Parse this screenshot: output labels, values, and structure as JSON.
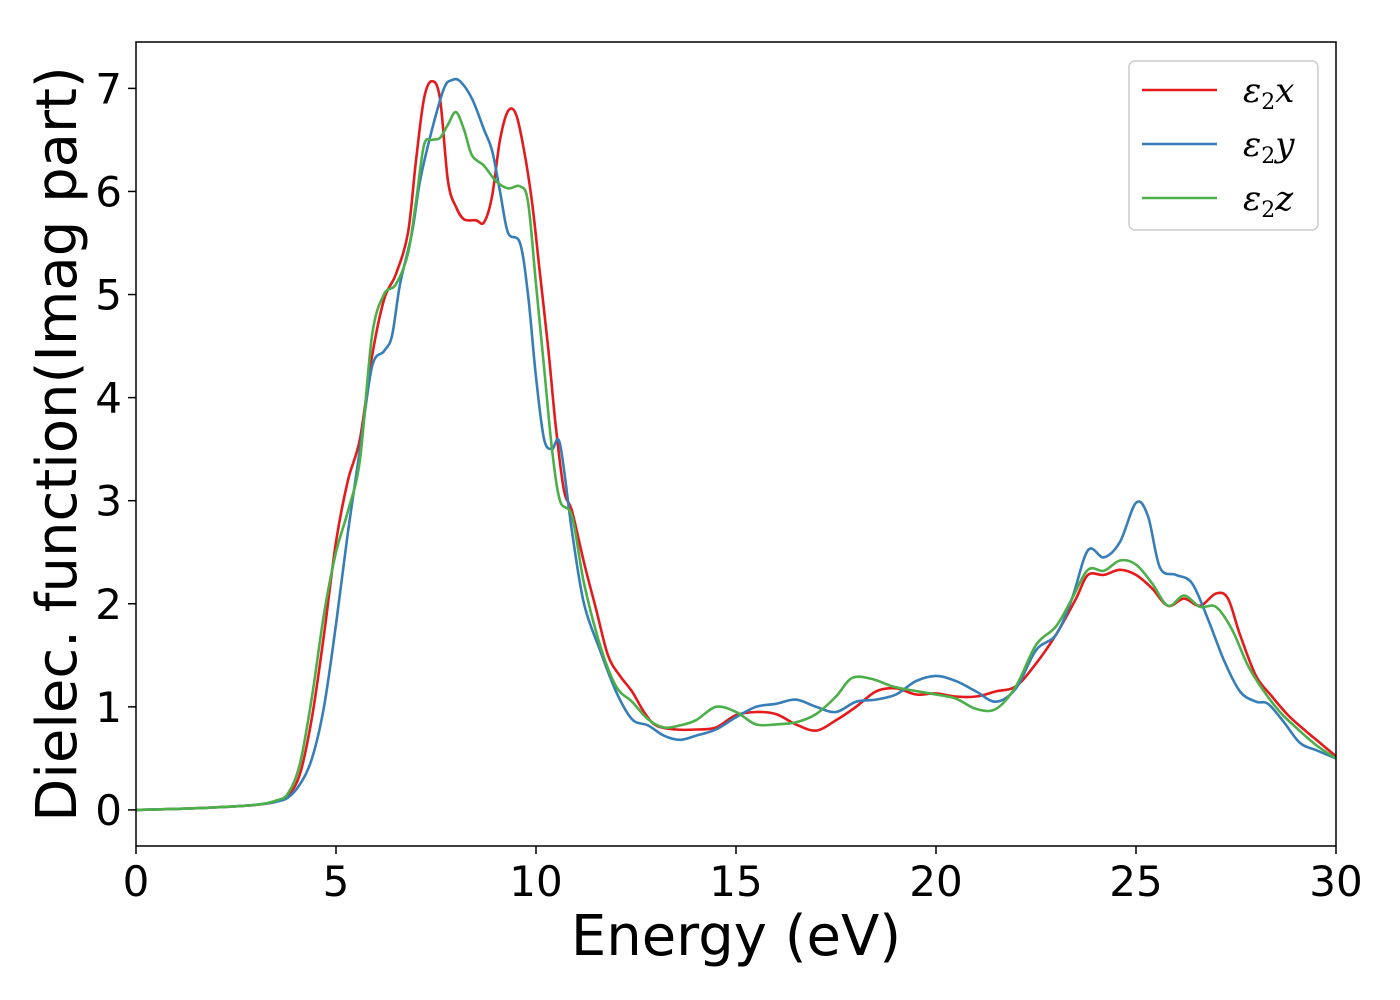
{
  "chart_data": {
    "type": "line",
    "xlabel": "Energy (eV)",
    "ylabel": "Dielec. function(Imag part)",
    "xlim": [
      0,
      30
    ],
    "ylim": [
      -0.35,
      7.45
    ],
    "xticks": [
      0,
      5,
      10,
      15,
      20,
      25,
      30
    ],
    "yticks": [
      0,
      1,
      2,
      3,
      4,
      5,
      6,
      7
    ],
    "grid": false,
    "legend_position": "top-right",
    "series": [
      {
        "name": "ε2x",
        "symbol": "ε",
        "sub": "2",
        "suffix": "x",
        "color": "#e41a1c",
        "points": [
          [
            0,
            0
          ],
          [
            1,
            0.01
          ],
          [
            2,
            0.025
          ],
          [
            3,
            0.05
          ],
          [
            3.5,
            0.08
          ],
          [
            3.8,
            0.14
          ],
          [
            4.1,
            0.35
          ],
          [
            4.4,
            0.9
          ],
          [
            4.7,
            1.7
          ],
          [
            5,
            2.6
          ],
          [
            5.3,
            3.2
          ],
          [
            5.6,
            3.6
          ],
          [
            5.9,
            4.4
          ],
          [
            6.2,
            4.95
          ],
          [
            6.5,
            5.2
          ],
          [
            6.8,
            5.6
          ],
          [
            7,
            6.3
          ],
          [
            7.2,
            6.9
          ],
          [
            7.4,
            7.07
          ],
          [
            7.6,
            6.9
          ],
          [
            7.8,
            6.1
          ],
          [
            8.0,
            5.85
          ],
          [
            8.2,
            5.73
          ],
          [
            8.5,
            5.72
          ],
          [
            8.7,
            5.7
          ],
          [
            8.9,
            5.95
          ],
          [
            9.1,
            6.5
          ],
          [
            9.3,
            6.78
          ],
          [
            9.5,
            6.75
          ],
          [
            9.7,
            6.4
          ],
          [
            9.9,
            5.9
          ],
          [
            10.1,
            5.2
          ],
          [
            10.3,
            4.5
          ],
          [
            10.5,
            3.7
          ],
          [
            10.7,
            3.1
          ],
          [
            10.9,
            2.9
          ],
          [
            11.2,
            2.4
          ],
          [
            11.5,
            1.95
          ],
          [
            11.8,
            1.5
          ],
          [
            12.1,
            1.3
          ],
          [
            12.4,
            1.15
          ],
          [
            12.7,
            0.95
          ],
          [
            13.0,
            0.82
          ],
          [
            13.5,
            0.78
          ],
          [
            14,
            0.78
          ],
          [
            14.5,
            0.8
          ],
          [
            15,
            0.92
          ],
          [
            15.5,
            0.95
          ],
          [
            16,
            0.93
          ],
          [
            16.5,
            0.83
          ],
          [
            17,
            0.77
          ],
          [
            17.5,
            0.87
          ],
          [
            18,
            1.0
          ],
          [
            18.5,
            1.15
          ],
          [
            19,
            1.18
          ],
          [
            19.5,
            1.12
          ],
          [
            20,
            1.13
          ],
          [
            20.5,
            1.1
          ],
          [
            21,
            1.1
          ],
          [
            21.5,
            1.15
          ],
          [
            22,
            1.2
          ],
          [
            22.5,
            1.42
          ],
          [
            23,
            1.7
          ],
          [
            23.5,
            2.05
          ],
          [
            23.8,
            2.28
          ],
          [
            24.2,
            2.28
          ],
          [
            24.6,
            2.33
          ],
          [
            25,
            2.28
          ],
          [
            25.4,
            2.15
          ],
          [
            25.8,
            1.98
          ],
          [
            26.2,
            2.05
          ],
          [
            26.6,
            1.98
          ],
          [
            27,
            2.1
          ],
          [
            27.3,
            2.05
          ],
          [
            27.6,
            1.7
          ],
          [
            28,
            1.3
          ],
          [
            28.4,
            1.1
          ],
          [
            28.8,
            0.92
          ],
          [
            29.2,
            0.78
          ],
          [
            29.6,
            0.65
          ],
          [
            30,
            0.52
          ]
        ]
      },
      {
        "name": "ε2y",
        "symbol": "ε",
        "sub": "2",
        "suffix": "y",
        "color": "#377eb8",
        "points": [
          [
            0,
            0
          ],
          [
            1,
            0.01
          ],
          [
            2,
            0.025
          ],
          [
            3,
            0.05
          ],
          [
            3.5,
            0.08
          ],
          [
            3.8,
            0.12
          ],
          [
            4.1,
            0.25
          ],
          [
            4.4,
            0.5
          ],
          [
            4.7,
            1.0
          ],
          [
            5,
            1.8
          ],
          [
            5.3,
            2.7
          ],
          [
            5.6,
            3.5
          ],
          [
            5.9,
            4.3
          ],
          [
            6.2,
            4.45
          ],
          [
            6.4,
            4.6
          ],
          [
            6.6,
            5.1
          ],
          [
            6.9,
            5.6
          ],
          [
            7.1,
            6.1
          ],
          [
            7.4,
            6.6
          ],
          [
            7.7,
            7.0
          ],
          [
            7.9,
            7.08
          ],
          [
            8.1,
            7.07
          ],
          [
            8.4,
            6.9
          ],
          [
            8.7,
            6.6
          ],
          [
            8.9,
            6.4
          ],
          [
            9.1,
            6.0
          ],
          [
            9.3,
            5.6
          ],
          [
            9.6,
            5.5
          ],
          [
            9.8,
            5.0
          ],
          [
            10.0,
            4.2
          ],
          [
            10.2,
            3.6
          ],
          [
            10.4,
            3.5
          ],
          [
            10.6,
            3.55
          ],
          [
            10.9,
            2.7
          ],
          [
            11.2,
            2.0
          ],
          [
            11.6,
            1.55
          ],
          [
            12.0,
            1.15
          ],
          [
            12.4,
            0.88
          ],
          [
            12.8,
            0.82
          ],
          [
            13.2,
            0.72
          ],
          [
            13.6,
            0.68
          ],
          [
            14.0,
            0.72
          ],
          [
            14.5,
            0.78
          ],
          [
            15,
            0.9
          ],
          [
            15.5,
            1.0
          ],
          [
            16,
            1.03
          ],
          [
            16.5,
            1.07
          ],
          [
            17,
            1.0
          ],
          [
            17.5,
            0.95
          ],
          [
            18,
            1.05
          ],
          [
            18.5,
            1.07
          ],
          [
            19,
            1.12
          ],
          [
            19.5,
            1.25
          ],
          [
            20,
            1.3
          ],
          [
            20.5,
            1.25
          ],
          [
            21,
            1.15
          ],
          [
            21.5,
            1.05
          ],
          [
            22,
            1.18
          ],
          [
            22.5,
            1.55
          ],
          [
            23,
            1.7
          ],
          [
            23.4,
            2.05
          ],
          [
            23.8,
            2.52
          ],
          [
            24.2,
            2.45
          ],
          [
            24.6,
            2.6
          ],
          [
            25,
            2.98
          ],
          [
            25.3,
            2.85
          ],
          [
            25.6,
            2.35
          ],
          [
            26,
            2.28
          ],
          [
            26.4,
            2.2
          ],
          [
            26.8,
            1.85
          ],
          [
            27.2,
            1.45
          ],
          [
            27.6,
            1.15
          ],
          [
            28,
            1.05
          ],
          [
            28.3,
            1.03
          ],
          [
            28.7,
            0.85
          ],
          [
            29.1,
            0.65
          ],
          [
            29.5,
            0.58
          ],
          [
            30,
            0.5
          ]
        ]
      },
      {
        "name": "ε2z",
        "symbol": "ε",
        "sub": "2",
        "suffix": "z",
        "color": "#4daf4a",
        "points": [
          [
            0,
            0
          ],
          [
            1,
            0.01
          ],
          [
            2,
            0.025
          ],
          [
            3,
            0.05
          ],
          [
            3.5,
            0.09
          ],
          [
            3.8,
            0.16
          ],
          [
            4.1,
            0.45
          ],
          [
            4.4,
            1.1
          ],
          [
            4.7,
            1.9
          ],
          [
            5,
            2.5
          ],
          [
            5.3,
            2.9
          ],
          [
            5.6,
            3.4
          ],
          [
            5.9,
            4.6
          ],
          [
            6.2,
            5.0
          ],
          [
            6.5,
            5.1
          ],
          [
            6.8,
            5.4
          ],
          [
            7.0,
            5.9
          ],
          [
            7.2,
            6.45
          ],
          [
            7.4,
            6.5
          ],
          [
            7.6,
            6.52
          ],
          [
            7.8,
            6.65
          ],
          [
            8.0,
            6.77
          ],
          [
            8.2,
            6.6
          ],
          [
            8.4,
            6.35
          ],
          [
            8.7,
            6.25
          ],
          [
            9.0,
            6.1
          ],
          [
            9.3,
            6.03
          ],
          [
            9.6,
            6.05
          ],
          [
            9.8,
            5.9
          ],
          [
            10.0,
            5.1
          ],
          [
            10.2,
            4.3
          ],
          [
            10.4,
            3.5
          ],
          [
            10.6,
            3.0
          ],
          [
            10.9,
            2.85
          ],
          [
            11.2,
            2.2
          ],
          [
            11.6,
            1.6
          ],
          [
            12.0,
            1.2
          ],
          [
            12.4,
            1.05
          ],
          [
            12.8,
            0.88
          ],
          [
            13.2,
            0.8
          ],
          [
            13.6,
            0.82
          ],
          [
            14.0,
            0.87
          ],
          [
            14.5,
            1.0
          ],
          [
            15,
            0.95
          ],
          [
            15.5,
            0.83
          ],
          [
            16,
            0.83
          ],
          [
            16.5,
            0.85
          ],
          [
            17,
            0.93
          ],
          [
            17.5,
            1.1
          ],
          [
            17.9,
            1.28
          ],
          [
            18.4,
            1.27
          ],
          [
            18.9,
            1.2
          ],
          [
            19.4,
            1.16
          ],
          [
            20,
            1.12
          ],
          [
            20.5,
            1.08
          ],
          [
            21,
            0.98
          ],
          [
            21.5,
            0.98
          ],
          [
            22,
            1.2
          ],
          [
            22.5,
            1.6
          ],
          [
            23,
            1.78
          ],
          [
            23.4,
            2.05
          ],
          [
            23.8,
            2.33
          ],
          [
            24.2,
            2.32
          ],
          [
            24.6,
            2.42
          ],
          [
            25,
            2.38
          ],
          [
            25.4,
            2.2
          ],
          [
            25.8,
            1.98
          ],
          [
            26.2,
            2.08
          ],
          [
            26.6,
            1.97
          ],
          [
            27,
            1.97
          ],
          [
            27.4,
            1.75
          ],
          [
            27.8,
            1.4
          ],
          [
            28.2,
            1.15
          ],
          [
            28.6,
            0.95
          ],
          [
            29,
            0.8
          ],
          [
            29.5,
            0.63
          ],
          [
            30,
            0.5
          ]
        ]
      }
    ]
  }
}
